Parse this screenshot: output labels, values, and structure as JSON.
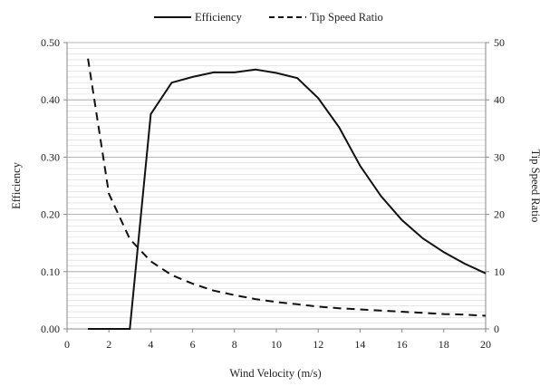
{
  "chart_data": {
    "type": "line",
    "title": "",
    "xlabel": "Wind Velocity (m/s)",
    "ylabel": "Efficiency",
    "y2label": "Tip Speed Ratio",
    "xlim": [
      0,
      20
    ],
    "ylim": [
      0,
      0.5
    ],
    "y2lim": [
      0,
      50
    ],
    "x_ticks": [
      "0",
      "2",
      "4",
      "6",
      "8",
      "10",
      "12",
      "14",
      "16",
      "18",
      "20"
    ],
    "y_ticks": [
      "0.00",
      "0.10",
      "0.20",
      "0.30",
      "0.40",
      "0.50"
    ],
    "y2_ticks": [
      "0",
      "10",
      "20",
      "30",
      "40",
      "50"
    ],
    "grid": true,
    "legend_position": "top",
    "series": [
      {
        "name": "Efficiency",
        "axis": "left",
        "style": "solid",
        "x": [
          1,
          2,
          3,
          4,
          5,
          6,
          7,
          8,
          9,
          10,
          11,
          12,
          13,
          14,
          15,
          16,
          17,
          18,
          19,
          20
        ],
        "values": [
          0.0,
          0.0,
          0.0,
          0.375,
          0.43,
          0.44,
          0.448,
          0.448,
          0.453,
          0.447,
          0.438,
          0.403,
          0.352,
          0.285,
          0.232,
          0.19,
          0.158,
          0.134,
          0.114,
          0.097
        ]
      },
      {
        "name": "Tip Speed Ratio",
        "axis": "right",
        "style": "dashed",
        "x": [
          1,
          2,
          3,
          4,
          5,
          6,
          7,
          8,
          9,
          10,
          11,
          12,
          13,
          14,
          15,
          16,
          17,
          18,
          19,
          20
        ],
        "values": [
          47.2,
          23.6,
          15.7,
          11.8,
          9.4,
          7.9,
          6.7,
          5.9,
          5.2,
          4.7,
          4.3,
          3.9,
          3.6,
          3.4,
          3.2,
          3.0,
          2.8,
          2.6,
          2.5,
          2.3
        ]
      }
    ]
  }
}
